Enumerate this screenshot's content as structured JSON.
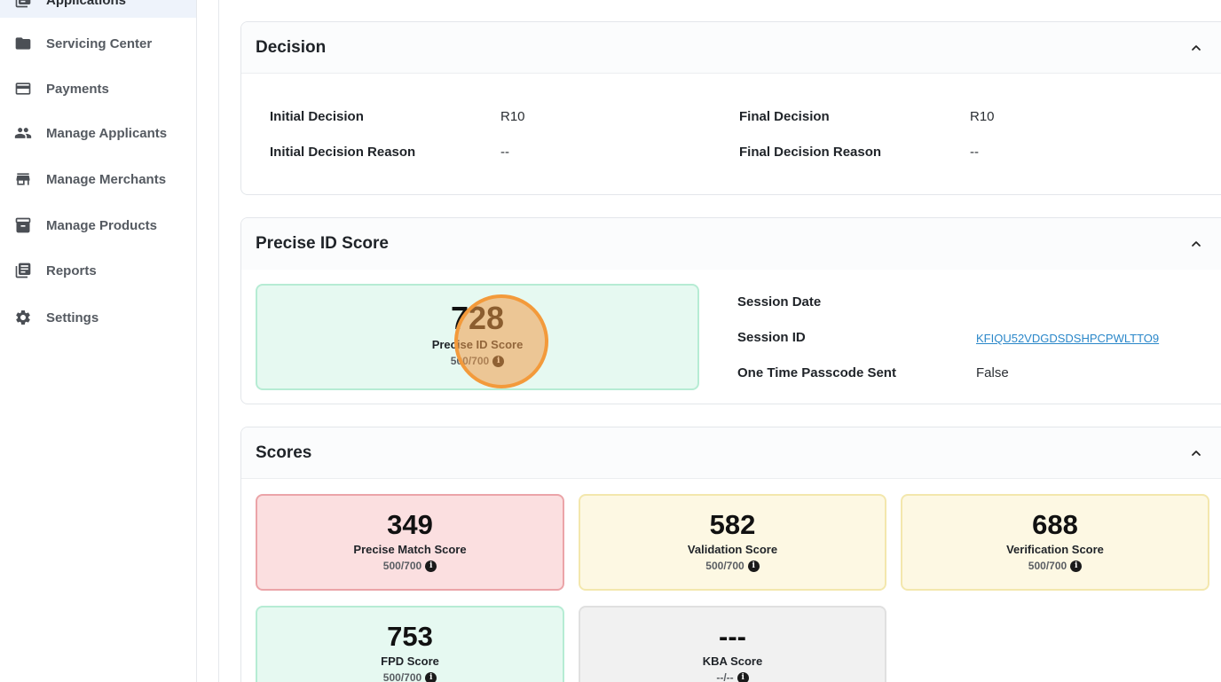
{
  "sidebar": {
    "items": [
      {
        "label": "Applications",
        "icon": "applications-icon"
      },
      {
        "label": "Servicing Center",
        "icon": "folder-icon"
      },
      {
        "label": "Payments",
        "icon": "payment-card-icon"
      },
      {
        "label": "Manage Applicants",
        "icon": "people-icon"
      },
      {
        "label": "Manage Merchants",
        "icon": "store-icon"
      },
      {
        "label": "Manage Products",
        "icon": "archive-icon"
      },
      {
        "label": "Reports",
        "icon": "reports-icon"
      },
      {
        "label": "Settings",
        "icon": "gear-icon"
      }
    ]
  },
  "decision": {
    "title": "Decision",
    "initial_decision_label": "Initial Decision",
    "initial_decision_value": "R10",
    "initial_reason_label": "Initial Decision Reason",
    "initial_reason_value": "--",
    "final_decision_label": "Final Decision",
    "final_decision_value": "R10",
    "final_reason_label": "Final Decision Reason",
    "final_reason_value": "--"
  },
  "precise_id": {
    "title": "Precise ID Score",
    "score": "728",
    "score_label": "Precise ID Score",
    "score_range": "500/700",
    "session_date_label": "Session Date",
    "session_date_value": "",
    "session_id_label": "Session ID",
    "session_id_value": "KFIQU52VDGDSDSHPCPWLTTO9",
    "otp_label": "One Time Passcode Sent",
    "otp_value": "False"
  },
  "scores": {
    "title": "Scores",
    "tiles": [
      {
        "value": "349",
        "label": "Precise Match Score",
        "range": "500/700",
        "status_color": "#fbdfe0"
      },
      {
        "value": "582",
        "label": "Validation Score",
        "range": "500/700",
        "status_color": "#fdf8e3"
      },
      {
        "value": "688",
        "label": "Verification Score",
        "range": "500/700",
        "status_color": "#fdf8e3"
      },
      {
        "value": "753",
        "label": "FPD Score",
        "range": "500/700",
        "status_color": "#e6f9f1"
      },
      {
        "value": "---",
        "label": "KBA Score",
        "range": "--/--",
        "status_color": "#f1f1f1"
      }
    ]
  },
  "info_glyph": "i"
}
